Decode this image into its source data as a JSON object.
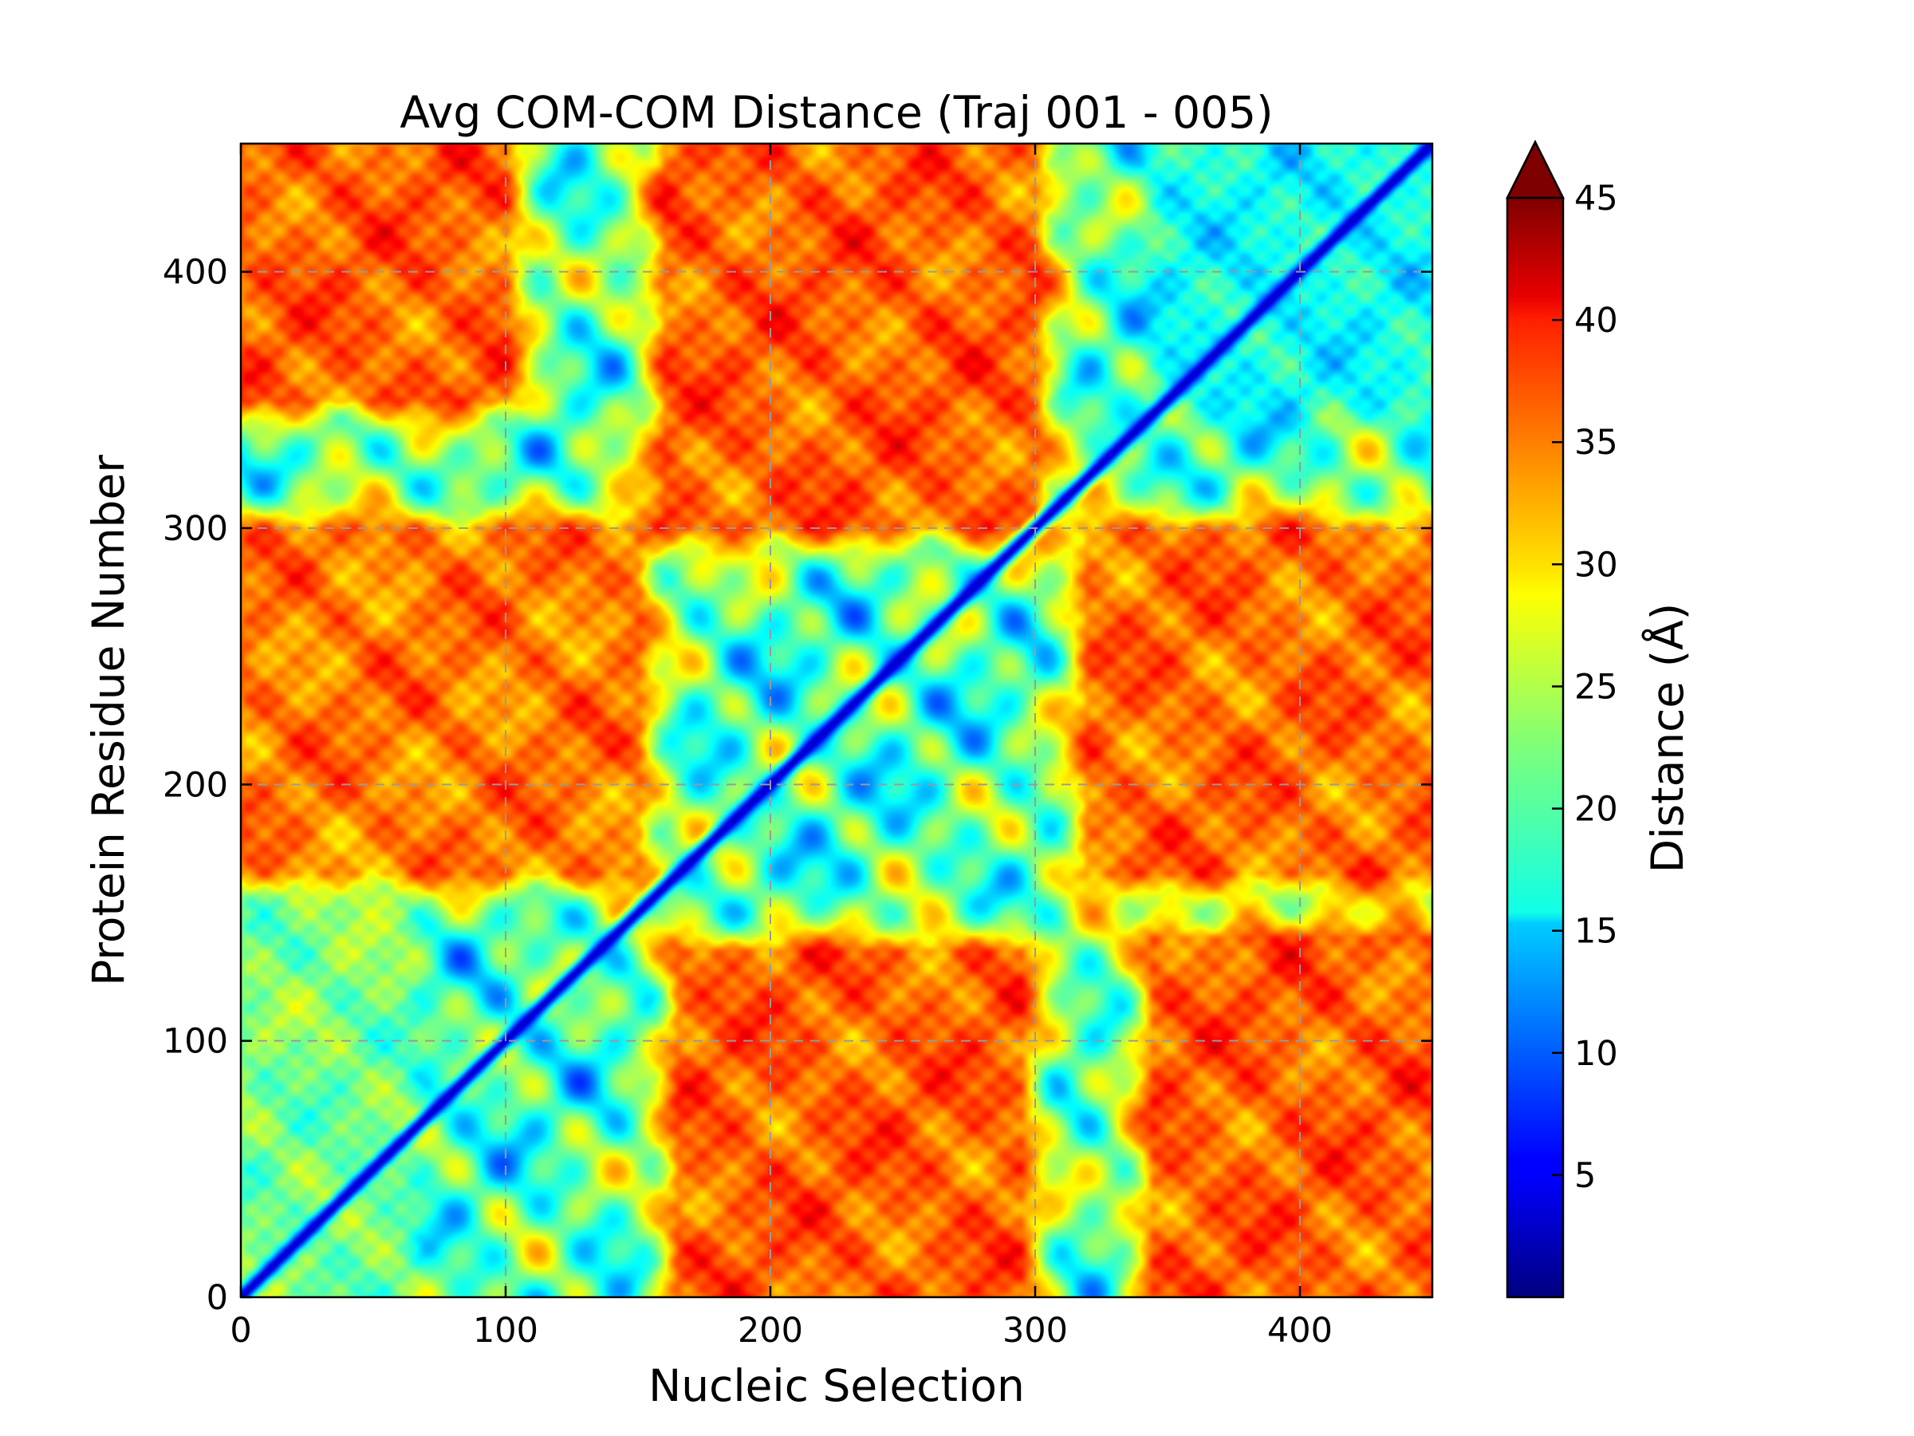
{
  "chart_data": {
    "type": "heatmap",
    "title": "Avg COM-COM Distance (Traj 001 - 005)",
    "xlabel": "Nucleic Selection",
    "ylabel": "Protein Residue Number",
    "xlim": [
      0,
      450
    ],
    "ylim": [
      0,
      450
    ],
    "x_ticks": [
      0,
      100,
      200,
      300,
      400
    ],
    "y_ticks": [
      0,
      100,
      200,
      300,
      400
    ],
    "x_tick_labels": [
      "0",
      "100",
      "200",
      "300",
      "400"
    ],
    "y_tick_labels": [
      "0",
      "100",
      "200",
      "300",
      "400"
    ],
    "grid": true,
    "colormap": "jet",
    "colorbar": {
      "label": "Distance (Å)",
      "range": [
        0,
        45
      ],
      "extend": "max",
      "ticks": [
        5,
        10,
        15,
        20,
        25,
        30,
        35,
        40,
        45
      ],
      "tick_labels": [
        "5",
        "10",
        "15",
        "20",
        "25",
        "30",
        "35",
        "40",
        "45"
      ]
    },
    "features": {
      "diagonal_value": 3,
      "far_blocks": [
        {
          "x": [
            165,
            295
          ],
          "y": [
            0,
            135
          ],
          "value": 46
        },
        {
          "x": [
            345,
            450
          ],
          "y": [
            0,
            140
          ],
          "value": 46
        },
        {
          "x": [
            0,
            150
          ],
          "y": [
            165,
            300
          ],
          "value": 44
        },
        {
          "x": [
            320,
            450
          ],
          "y": [
            165,
            300
          ],
          "value": 45
        },
        {
          "x": [
            0,
            100
          ],
          "y": [
            350,
            450
          ],
          "value": 46
        },
        {
          "x": [
            160,
            300
          ],
          "y": [
            300,
            450
          ],
          "value": 46
        },
        {
          "x": [
            0,
            60
          ],
          "y": [
            0,
            150
          ],
          "value": 24
        },
        {
          "x": [
            350,
            450
          ],
          "y": [
            350,
            450
          ],
          "value": 16
        }
      ]
    }
  }
}
